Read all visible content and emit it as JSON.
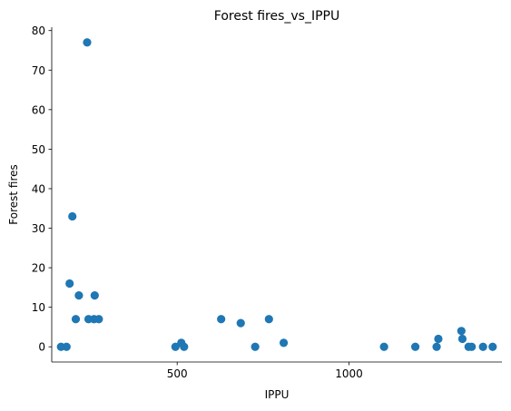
{
  "chart_data": {
    "type": "scatter",
    "title": "Forest fires_vs_IPPU",
    "xlabel": "IPPU",
    "ylabel": "Forest fires",
    "xlim": [
      135,
      1445
    ],
    "ylim": [
      -3.85,
      80.85
    ],
    "xticks": [
      500,
      1000
    ],
    "yticks": [
      0,
      10,
      20,
      30,
      40,
      50,
      60,
      70,
      80
    ],
    "grid": false,
    "color": "#1f77b4",
    "points": [
      {
        "x": 162,
        "y": 0
      },
      {
        "x": 178,
        "y": 0
      },
      {
        "x": 187,
        "y": 16
      },
      {
        "x": 195,
        "y": 33
      },
      {
        "x": 205,
        "y": 7
      },
      {
        "x": 214,
        "y": 13
      },
      {
        "x": 238,
        "y": 77
      },
      {
        "x": 242,
        "y": 7
      },
      {
        "x": 258,
        "y": 7
      },
      {
        "x": 260,
        "y": 13
      },
      {
        "x": 272,
        "y": 7
      },
      {
        "x": 495,
        "y": 0
      },
      {
        "x": 512,
        "y": 1
      },
      {
        "x": 520,
        "y": 0
      },
      {
        "x": 628,
        "y": 7
      },
      {
        "x": 685,
        "y": 6
      },
      {
        "x": 727,
        "y": 0
      },
      {
        "x": 767,
        "y": 7
      },
      {
        "x": 810,
        "y": 1
      },
      {
        "x": 1102,
        "y": 0
      },
      {
        "x": 1193,
        "y": 0
      },
      {
        "x": 1255,
        "y": 0
      },
      {
        "x": 1260,
        "y": 2
      },
      {
        "x": 1327,
        "y": 4
      },
      {
        "x": 1330,
        "y": 2
      },
      {
        "x": 1348,
        "y": 0
      },
      {
        "x": 1357,
        "y": 0
      },
      {
        "x": 1390,
        "y": 0
      },
      {
        "x": 1418,
        "y": 0
      }
    ]
  }
}
